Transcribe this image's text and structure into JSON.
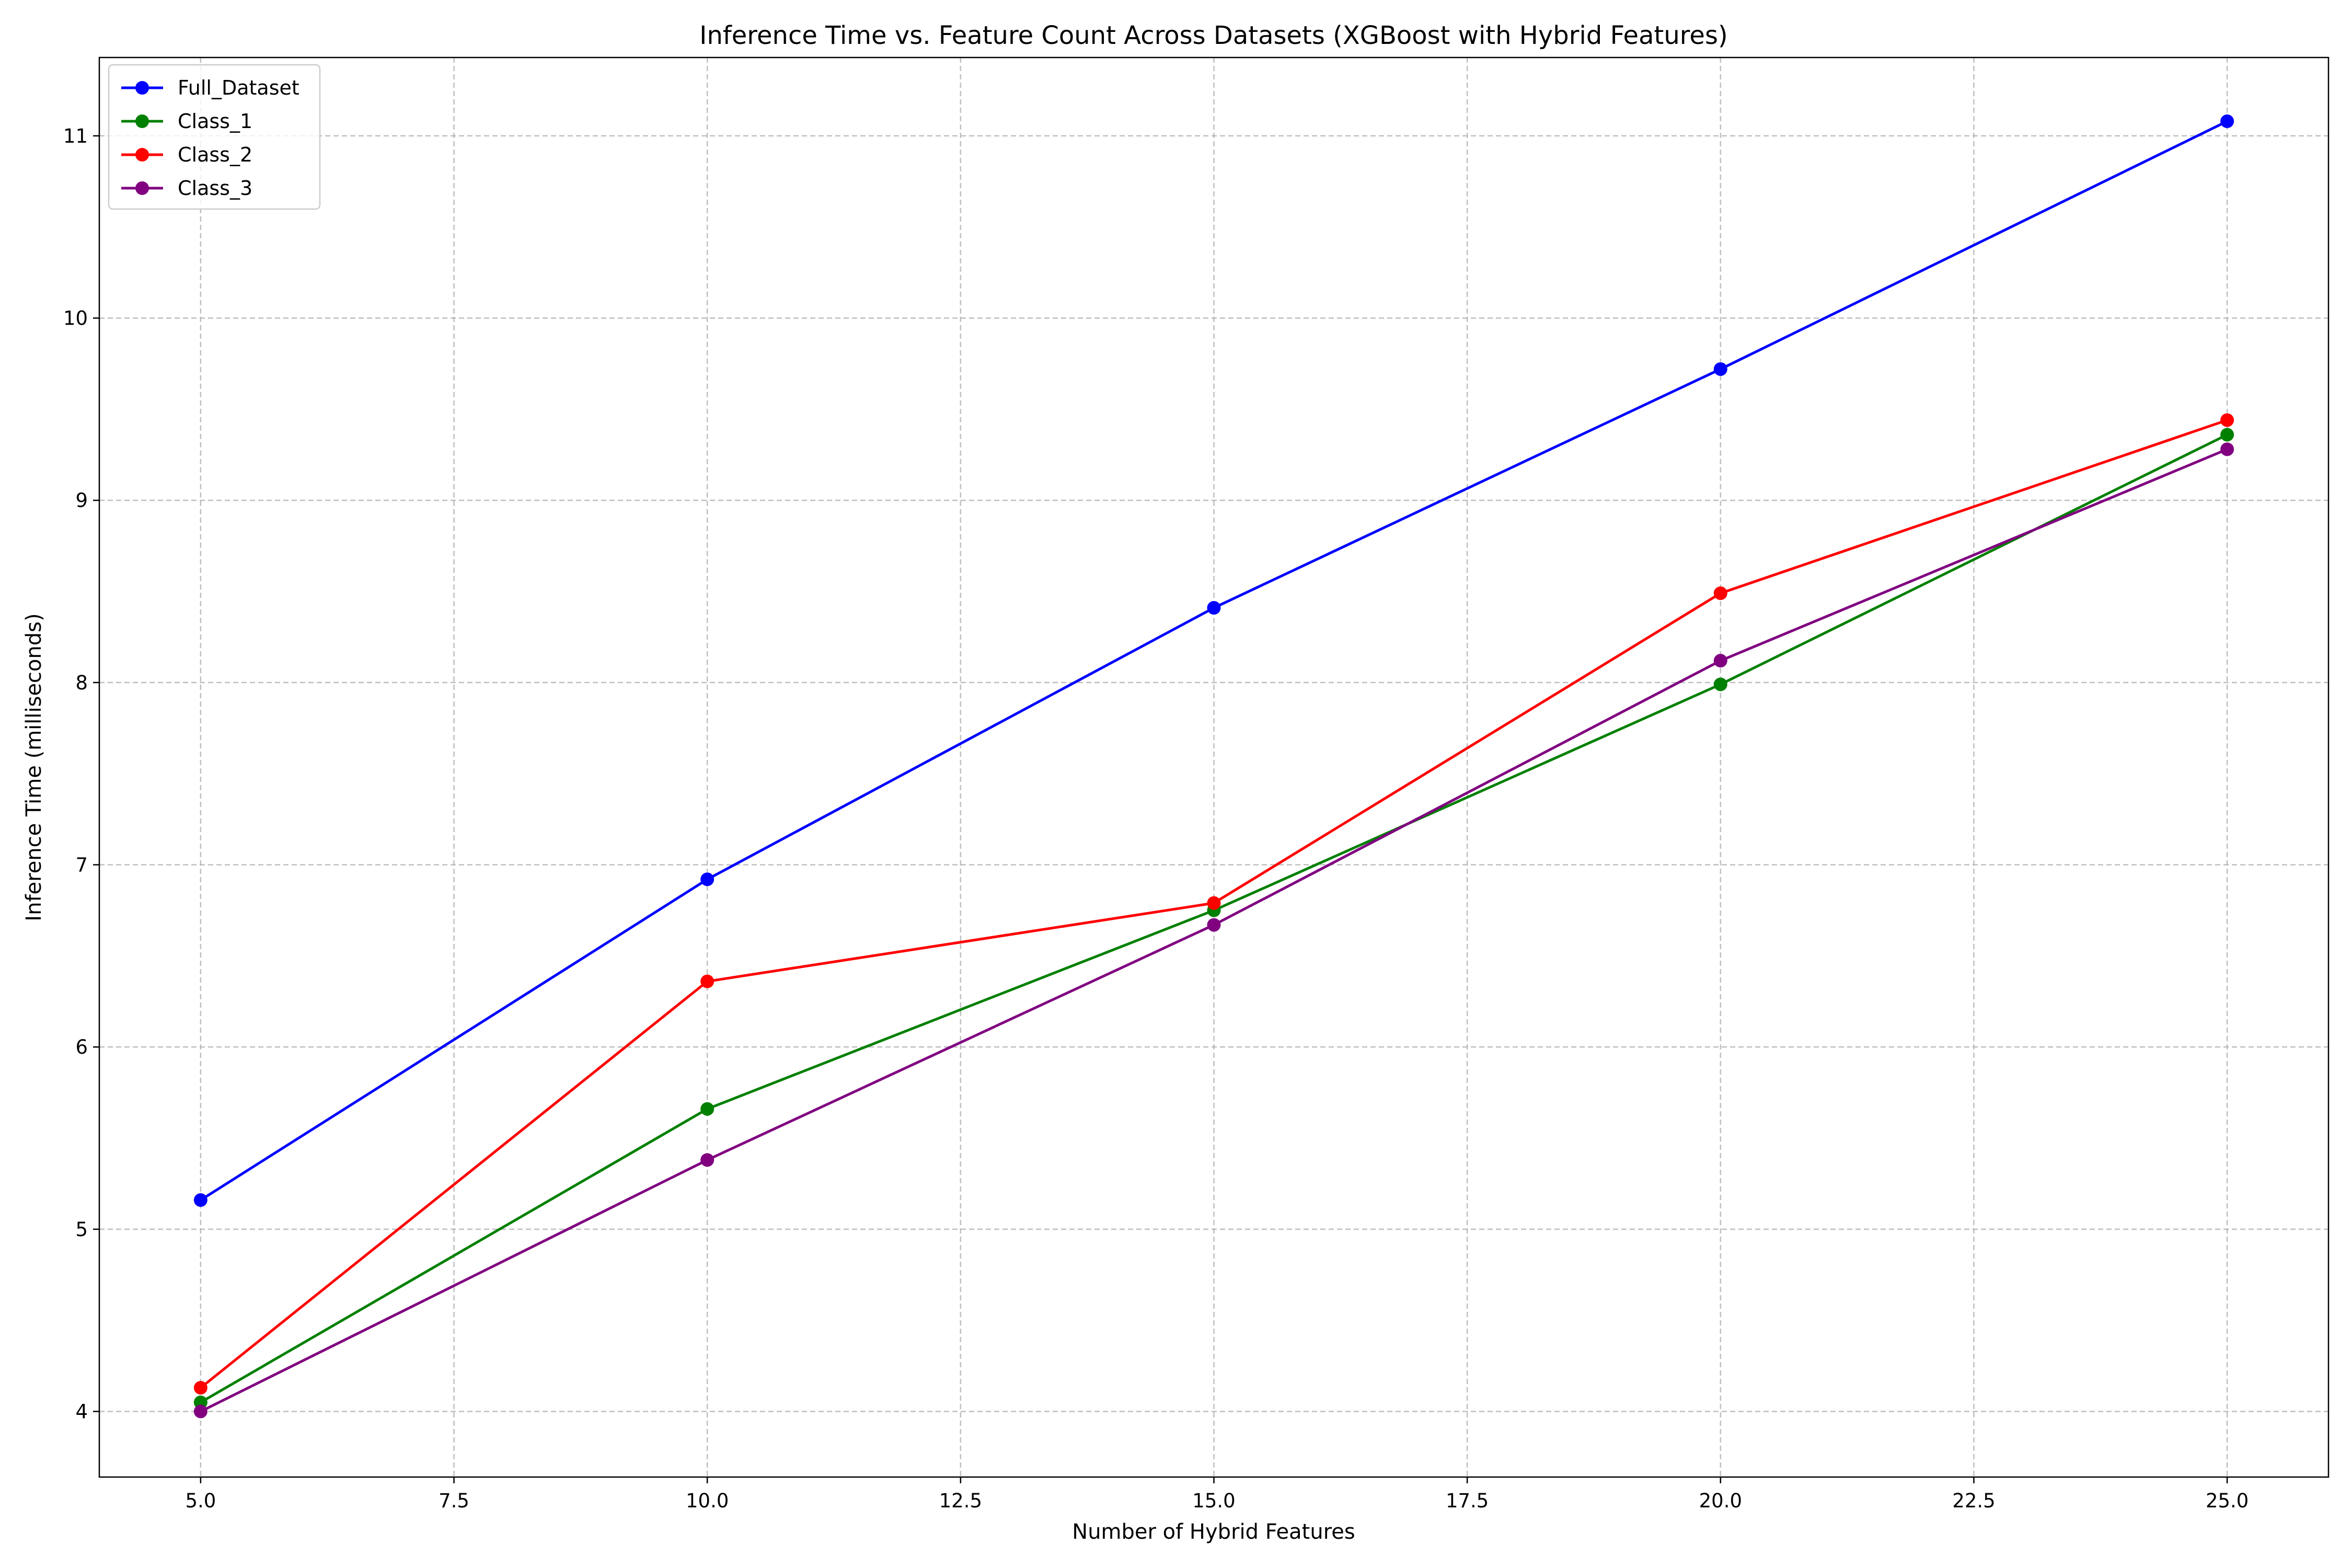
{
  "chart_data": {
    "type": "line",
    "title": "Inference Time vs. Feature Count Across Datasets (XGBoost with Hybrid Features)",
    "xlabel": "Number of Hybrid Features",
    "ylabel": "Inference Time (milliseconds)",
    "x": [
      5,
      10,
      15,
      20,
      25
    ],
    "xlim": [
      4.0,
      26.0
    ],
    "ylim": [
      3.64,
      11.43
    ],
    "x_ticks": [
      5.0,
      7.5,
      10.0,
      12.5,
      15.0,
      17.5,
      20.0,
      22.5,
      25.0
    ],
    "x_tick_labels": [
      "5.0",
      "7.5",
      "10.0",
      "12.5",
      "15.0",
      "17.5",
      "20.0",
      "22.5",
      "25.0"
    ],
    "y_ticks": [
      4,
      5,
      6,
      7,
      8,
      9,
      10,
      11
    ],
    "y_tick_labels": [
      "4",
      "5",
      "6",
      "7",
      "8",
      "9",
      "10",
      "11"
    ],
    "grid": true,
    "legend_position": "top-left",
    "series": [
      {
        "name": "Full_Dataset",
        "color": "#0000ff",
        "values": [
          5.16,
          6.92,
          8.41,
          9.72,
          11.08
        ]
      },
      {
        "name": "Class_1",
        "color": "#008000",
        "values": [
          4.05,
          5.66,
          6.75,
          7.99,
          9.36
        ]
      },
      {
        "name": "Class_2",
        "color": "#ff0000",
        "values": [
          4.13,
          6.36,
          6.79,
          8.49,
          9.44
        ]
      },
      {
        "name": "Class_3",
        "color": "#800080",
        "values": [
          4.0,
          5.38,
          6.67,
          8.12,
          9.28
        ]
      }
    ]
  }
}
